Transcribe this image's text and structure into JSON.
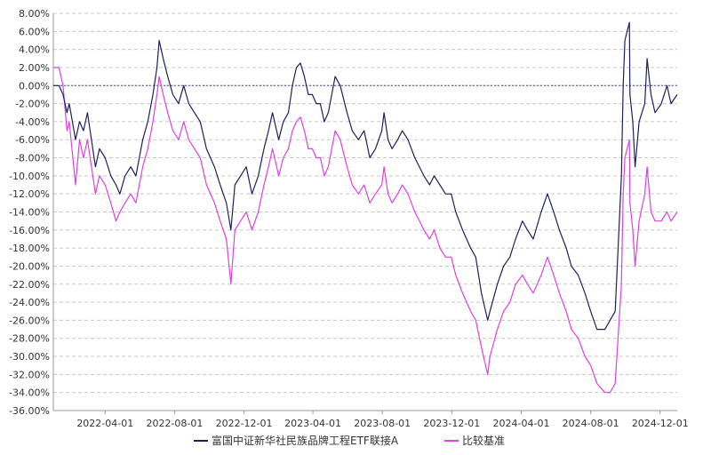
{
  "chart_data": {
    "type": "line",
    "title": "",
    "xlabel": "",
    "ylabel": "",
    "ylim": [
      -36,
      8
    ],
    "ytick_step": 2,
    "y_tick_labels": [
      "8.00%",
      "6.00%",
      "4.00%",
      "2.00%",
      "0.00%",
      "-2.00%",
      "-4.00%",
      "-6.00%",
      "-8.00%",
      "-10.00%",
      "-12.00%",
      "-14.00%",
      "-16.00%",
      "-18.00%",
      "-20.00%",
      "-22.00%",
      "-24.00%",
      "-26.00%",
      "-28.00%",
      "-30.00%",
      "-32.00%",
      "-34.00%",
      "-36.00%"
    ],
    "x_range": [
      "2021-12-31",
      "2024-12-31"
    ],
    "x_ticks": [
      "2022-04-01",
      "2022-08-01",
      "2022-12-01",
      "2023-04-01",
      "2023-08-01",
      "2023-12-01",
      "2024-04-01",
      "2024-08-01",
      "2024-12-01"
    ],
    "grid": true,
    "legend_position": "bottom",
    "series": [
      {
        "name": "富国中证新华社民族品牌工程ETF联接A",
        "color": "#1f1f5c",
        "points": [
          [
            "2021-12-31",
            0
          ],
          [
            "2022-01-10",
            0
          ],
          [
            "2022-01-17",
            -1
          ],
          [
            "2022-01-24",
            -3
          ],
          [
            "2022-01-28",
            -2
          ],
          [
            "2022-02-08",
            -6
          ],
          [
            "2022-02-15",
            -4
          ],
          [
            "2022-02-22",
            -5
          ],
          [
            "2022-03-01",
            -3
          ],
          [
            "2022-03-08",
            -6
          ],
          [
            "2022-03-15",
            -9
          ],
          [
            "2022-03-22",
            -7
          ],
          [
            "2022-04-01",
            -8
          ],
          [
            "2022-04-11",
            -10
          ],
          [
            "2022-04-20",
            -11
          ],
          [
            "2022-04-27",
            -12
          ],
          [
            "2022-05-06",
            -10
          ],
          [
            "2022-05-16",
            -9
          ],
          [
            "2022-05-25",
            -10
          ],
          [
            "2022-06-06",
            -6
          ],
          [
            "2022-06-15",
            -4
          ],
          [
            "2022-06-24",
            -1
          ],
          [
            "2022-07-01",
            2
          ],
          [
            "2022-07-05",
            5
          ],
          [
            "2022-07-12",
            3
          ],
          [
            "2022-07-20",
            1
          ],
          [
            "2022-07-29",
            -1
          ],
          [
            "2022-08-08",
            -2
          ],
          [
            "2022-08-17",
            0
          ],
          [
            "2022-08-26",
            -2
          ],
          [
            "2022-09-05",
            -3
          ],
          [
            "2022-09-15",
            -4
          ],
          [
            "2022-09-26",
            -7
          ],
          [
            "2022-10-10",
            -9
          ],
          [
            "2022-10-20",
            -11
          ],
          [
            "2022-10-31",
            -13
          ],
          [
            "2022-11-08",
            -16
          ],
          [
            "2022-11-15",
            -11
          ],
          [
            "2022-11-25",
            -10
          ],
          [
            "2022-12-05",
            -9
          ],
          [
            "2022-12-15",
            -12
          ],
          [
            "2022-12-26",
            -10
          ],
          [
            "2023-01-05",
            -7
          ],
          [
            "2023-01-13",
            -5
          ],
          [
            "2023-01-20",
            -3
          ],
          [
            "2023-01-31",
            -6
          ],
          [
            "2023-02-08",
            -4
          ],
          [
            "2023-02-17",
            -3
          ],
          [
            "2023-02-24",
            0
          ],
          [
            "2023-03-03",
            2
          ],
          [
            "2023-03-10",
            2.5
          ],
          [
            "2023-03-17",
            1
          ],
          [
            "2023-03-24",
            -1
          ],
          [
            "2023-03-31",
            -1
          ],
          [
            "2023-04-07",
            -2
          ],
          [
            "2023-04-14",
            -2
          ],
          [
            "2023-04-21",
            -4
          ],
          [
            "2023-04-28",
            -3
          ],
          [
            "2023-05-10",
            1
          ],
          [
            "2023-05-19",
            0
          ],
          [
            "2023-05-31",
            -3
          ],
          [
            "2023-06-09",
            -5
          ],
          [
            "2023-06-20",
            -6
          ],
          [
            "2023-06-30",
            -5
          ],
          [
            "2023-07-10",
            -8
          ],
          [
            "2023-07-20",
            -7
          ],
          [
            "2023-07-31",
            -5
          ],
          [
            "2023-08-04",
            -3
          ],
          [
            "2023-08-11",
            -6
          ],
          [
            "2023-08-18",
            -7
          ],
          [
            "2023-08-28",
            -6
          ],
          [
            "2023-09-05",
            -5
          ],
          [
            "2023-09-15",
            -6
          ],
          [
            "2023-09-27",
            -8
          ],
          [
            "2023-10-13",
            -10
          ],
          [
            "2023-10-23",
            -11
          ],
          [
            "2023-10-31",
            -10
          ],
          [
            "2023-11-10",
            -11
          ],
          [
            "2023-11-20",
            -12
          ],
          [
            "2023-11-30",
            -12
          ],
          [
            "2023-12-08",
            -14
          ],
          [
            "2023-12-20",
            -16
          ],
          [
            "2024-01-03",
            -18
          ],
          [
            "2024-01-12",
            -19
          ],
          [
            "2024-01-22",
            -23
          ],
          [
            "2024-02-02",
            -26
          ],
          [
            "2024-02-06",
            -25
          ],
          [
            "2024-02-19",
            -22
          ],
          [
            "2024-03-01",
            -20
          ],
          [
            "2024-03-12",
            -19
          ],
          [
            "2024-03-22",
            -17
          ],
          [
            "2024-04-03",
            -15
          ],
          [
            "2024-04-12",
            -16
          ],
          [
            "2024-04-22",
            -17
          ],
          [
            "2024-05-06",
            -14
          ],
          [
            "2024-05-17",
            -12
          ],
          [
            "2024-05-28",
            -14
          ],
          [
            "2024-06-07",
            -16
          ],
          [
            "2024-06-19",
            -18
          ],
          [
            "2024-06-28",
            -20
          ],
          [
            "2024-07-10",
            -21
          ],
          [
            "2024-07-22",
            -23
          ],
          [
            "2024-08-01",
            -25
          ],
          [
            "2024-08-12",
            -27
          ],
          [
            "2024-08-26",
            -27
          ],
          [
            "2024-09-04",
            -26
          ],
          [
            "2024-09-13",
            -25
          ],
          [
            "2024-09-24",
            -10
          ],
          [
            "2024-09-27",
            0
          ],
          [
            "2024-09-30",
            5
          ],
          [
            "2024-10-08",
            7
          ],
          [
            "2024-10-09",
            -1
          ],
          [
            "2024-10-14",
            -4
          ],
          [
            "2024-10-18",
            -9
          ],
          [
            "2024-10-25",
            -4
          ],
          [
            "2024-11-04",
            -2
          ],
          [
            "2024-11-08",
            3
          ],
          [
            "2024-11-15",
            -1
          ],
          [
            "2024-11-22",
            -3
          ],
          [
            "2024-12-03",
            -2
          ],
          [
            "2024-12-13",
            0
          ],
          [
            "2024-12-20",
            -2
          ],
          [
            "2024-12-31",
            -1
          ]
        ]
      },
      {
        "name": "比较基准",
        "color": "#e040e0",
        "points": [
          [
            "2021-12-31",
            2
          ],
          [
            "2022-01-10",
            2
          ],
          [
            "2022-01-17",
            0
          ],
          [
            "2022-01-24",
            -5
          ],
          [
            "2022-01-28",
            -4
          ],
          [
            "2022-02-08",
            -11
          ],
          [
            "2022-02-15",
            -6
          ],
          [
            "2022-02-22",
            -8
          ],
          [
            "2022-03-01",
            -6
          ],
          [
            "2022-03-08",
            -9
          ],
          [
            "2022-03-15",
            -12
          ],
          [
            "2022-03-22",
            -10
          ],
          [
            "2022-04-01",
            -11
          ],
          [
            "2022-04-11",
            -13
          ],
          [
            "2022-04-20",
            -15
          ],
          [
            "2022-04-27",
            -14
          ],
          [
            "2022-05-06",
            -13
          ],
          [
            "2022-05-16",
            -12
          ],
          [
            "2022-05-25",
            -13
          ],
          [
            "2022-06-06",
            -9
          ],
          [
            "2022-06-15",
            -7
          ],
          [
            "2022-06-24",
            -4
          ],
          [
            "2022-07-01",
            -1
          ],
          [
            "2022-07-05",
            1
          ],
          [
            "2022-07-12",
            -1
          ],
          [
            "2022-07-20",
            -3
          ],
          [
            "2022-07-29",
            -5
          ],
          [
            "2022-08-08",
            -6
          ],
          [
            "2022-08-17",
            -4
          ],
          [
            "2022-08-26",
            -6
          ],
          [
            "2022-09-05",
            -7
          ],
          [
            "2022-09-15",
            -8
          ],
          [
            "2022-09-26",
            -11
          ],
          [
            "2022-10-10",
            -13
          ],
          [
            "2022-10-20",
            -15
          ],
          [
            "2022-10-31",
            -17
          ],
          [
            "2022-11-08",
            -22
          ],
          [
            "2022-11-15",
            -16
          ],
          [
            "2022-11-25",
            -15
          ],
          [
            "2022-12-05",
            -14
          ],
          [
            "2022-12-15",
            -16
          ],
          [
            "2022-12-26",
            -14
          ],
          [
            "2023-01-05",
            -11
          ],
          [
            "2023-01-13",
            -9
          ],
          [
            "2023-01-20",
            -7
          ],
          [
            "2023-01-31",
            -10
          ],
          [
            "2023-02-08",
            -8
          ],
          [
            "2023-02-17",
            -7
          ],
          [
            "2023-02-24",
            -5
          ],
          [
            "2023-03-03",
            -4
          ],
          [
            "2023-03-10",
            -3.5
          ],
          [
            "2023-03-17",
            -5
          ],
          [
            "2023-03-24",
            -7
          ],
          [
            "2023-03-31",
            -7
          ],
          [
            "2023-04-07",
            -8
          ],
          [
            "2023-04-14",
            -8
          ],
          [
            "2023-04-21",
            -10
          ],
          [
            "2023-04-28",
            -9
          ],
          [
            "2023-05-10",
            -5
          ],
          [
            "2023-05-19",
            -6
          ],
          [
            "2023-05-31",
            -9
          ],
          [
            "2023-06-09",
            -11
          ],
          [
            "2023-06-20",
            -12
          ],
          [
            "2023-06-30",
            -11
          ],
          [
            "2023-07-10",
            -13
          ],
          [
            "2023-07-20",
            -12
          ],
          [
            "2023-07-31",
            -11
          ],
          [
            "2023-08-04",
            -9
          ],
          [
            "2023-08-11",
            -12
          ],
          [
            "2023-08-18",
            -13
          ],
          [
            "2023-08-28",
            -12
          ],
          [
            "2023-09-05",
            -11
          ],
          [
            "2023-09-15",
            -12
          ],
          [
            "2023-09-27",
            -14
          ],
          [
            "2023-10-13",
            -16
          ],
          [
            "2023-10-23",
            -17
          ],
          [
            "2023-10-31",
            -16
          ],
          [
            "2023-11-10",
            -18
          ],
          [
            "2023-11-20",
            -19
          ],
          [
            "2023-11-30",
            -19
          ],
          [
            "2023-12-08",
            -21
          ],
          [
            "2023-12-20",
            -23
          ],
          [
            "2024-01-03",
            -25
          ],
          [
            "2024-01-12",
            -26
          ],
          [
            "2024-01-22",
            -29
          ],
          [
            "2024-02-02",
            -32
          ],
          [
            "2024-02-06",
            -30
          ],
          [
            "2024-02-19",
            -27
          ],
          [
            "2024-03-01",
            -25
          ],
          [
            "2024-03-12",
            -24
          ],
          [
            "2024-03-22",
            -22
          ],
          [
            "2024-04-03",
            -21
          ],
          [
            "2024-04-12",
            -22
          ],
          [
            "2024-04-22",
            -23
          ],
          [
            "2024-05-06",
            -21
          ],
          [
            "2024-05-17",
            -19
          ],
          [
            "2024-05-28",
            -21
          ],
          [
            "2024-06-07",
            -23
          ],
          [
            "2024-06-19",
            -25
          ],
          [
            "2024-06-28",
            -27
          ],
          [
            "2024-07-10",
            -28
          ],
          [
            "2024-07-22",
            -30
          ],
          [
            "2024-08-01",
            -31
          ],
          [
            "2024-08-12",
            -33
          ],
          [
            "2024-08-26",
            -34
          ],
          [
            "2024-09-04",
            -34
          ],
          [
            "2024-09-13",
            -33
          ],
          [
            "2024-09-24",
            -22
          ],
          [
            "2024-09-27",
            -12
          ],
          [
            "2024-09-30",
            -8
          ],
          [
            "2024-10-08",
            -6
          ],
          [
            "2024-10-09",
            -13
          ],
          [
            "2024-10-14",
            -16
          ],
          [
            "2024-10-18",
            -20
          ],
          [
            "2024-10-25",
            -15
          ],
          [
            "2024-11-04",
            -12
          ],
          [
            "2024-11-08",
            -9
          ],
          [
            "2024-11-15",
            -14
          ],
          [
            "2024-11-22",
            -15
          ],
          [
            "2024-12-03",
            -15
          ],
          [
            "2024-12-13",
            -14
          ],
          [
            "2024-12-20",
            -15
          ],
          [
            "2024-12-31",
            -14
          ]
        ]
      }
    ]
  }
}
